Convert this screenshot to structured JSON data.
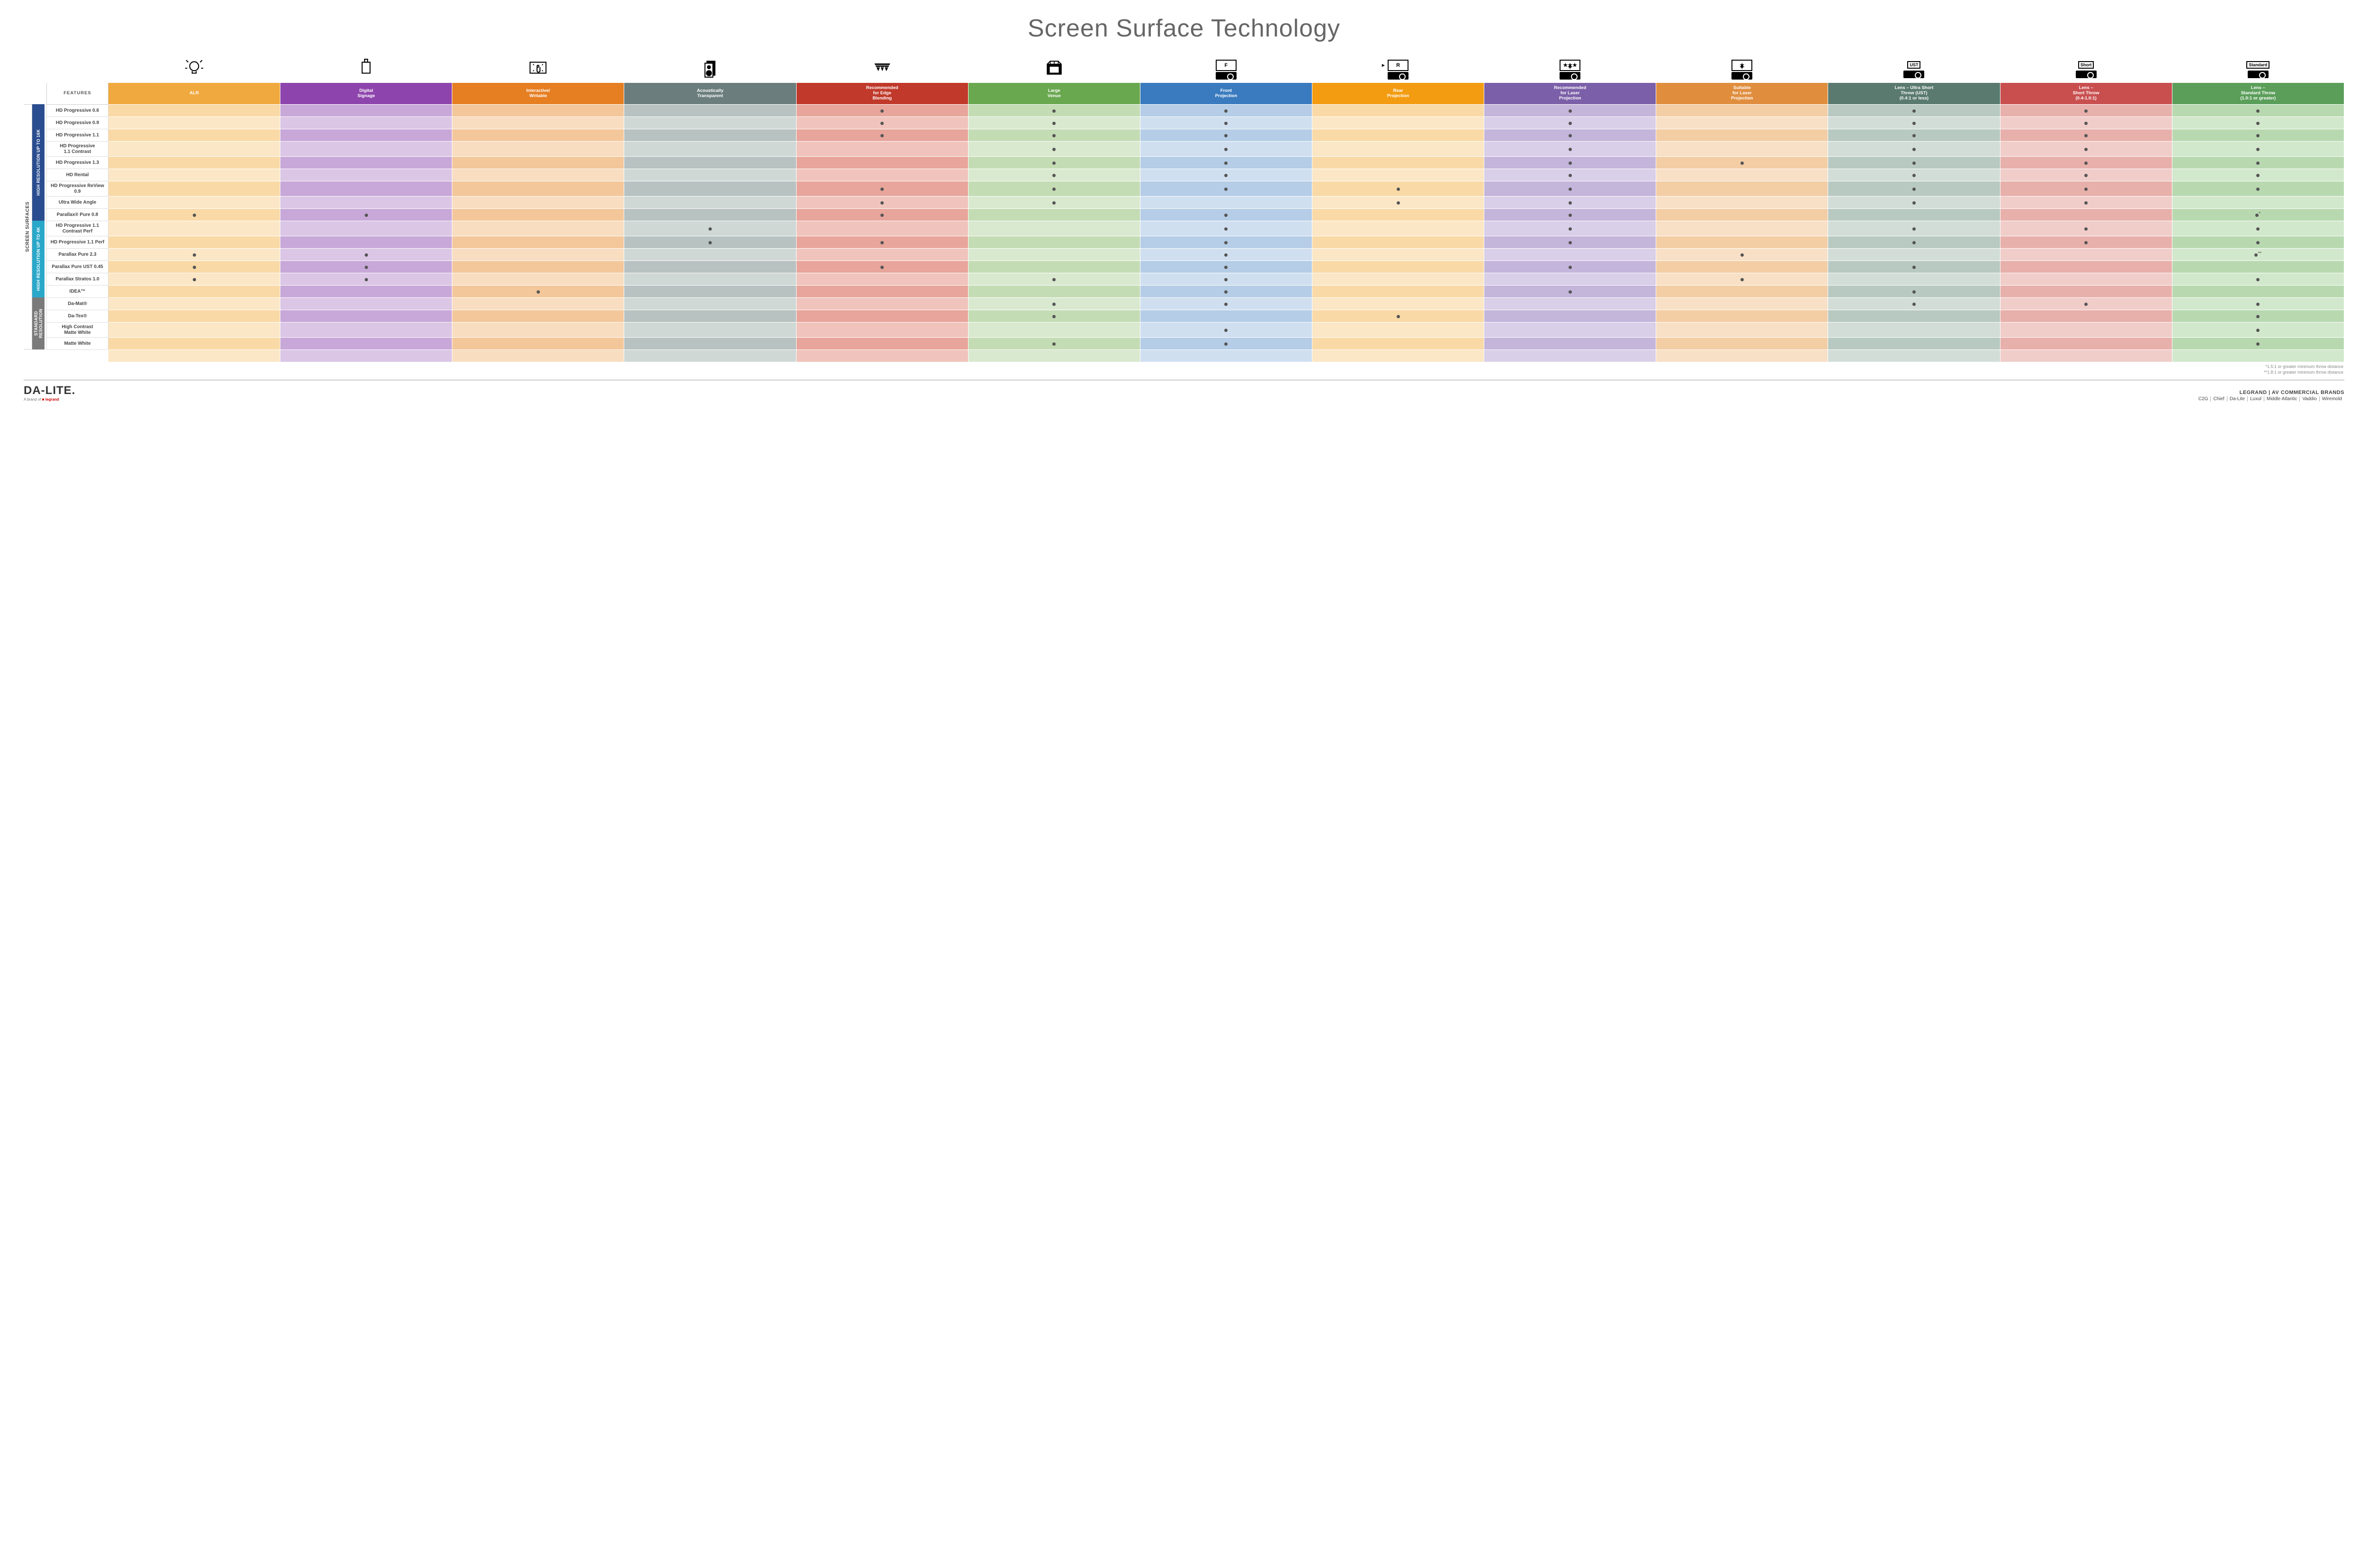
{
  "title": "Screen Surface Technology",
  "colors": {
    "alr": {
      "h": "#f0a93e",
      "a": "#f9d9a6",
      "b": "#fbe7c6"
    },
    "signage": {
      "h": "#8e44ad",
      "a": "#c8a8d8",
      "b": "#dbc6e6"
    },
    "interactive": {
      "h": "#e67e22",
      "a": "#f3c79a",
      "b": "#f8ddc0"
    },
    "acoustic": {
      "h": "#6b7d7d",
      "a": "#b8c2c0",
      "b": "#d0d8d6"
    },
    "edge": {
      "h": "#c0392b",
      "a": "#e8a59b",
      "b": "#f0c4bc"
    },
    "venue": {
      "h": "#6aa84f",
      "a": "#c4dcb4",
      "b": "#d9e9cf"
    },
    "front": {
      "h": "#3a7bbf",
      "a": "#b5cde6",
      "b": "#d0dff0"
    },
    "rear": {
      "h": "#f39c12",
      "a": "#f9d9a6",
      "b": "#fbe7c6"
    },
    "reclaser": {
      "h": "#7b5fa8",
      "a": "#c4b5db",
      "b": "#d9cfe8"
    },
    "suitlaser": {
      "h": "#e08e3e",
      "a": "#f3cda4",
      "b": "#f8e0c6"
    },
    "ust": {
      "h": "#5a7a6f",
      "a": "#b8c9c2",
      "b": "#d2ddd8"
    },
    "short": {
      "h": "#c94f4f",
      "a": "#e8b0ab",
      "b": "#f0cdc9"
    },
    "std": {
      "h": "#5a9e5a",
      "a": "#b8d9b0",
      "b": "#d2e8cc"
    }
  },
  "columns": [
    {
      "key": "alr",
      "label": "ALR",
      "icon": "bulb"
    },
    {
      "key": "signage",
      "label": "Digital\nSignage",
      "icon": "signage"
    },
    {
      "key": "interactive",
      "label": "Interactive/\nWritable",
      "icon": "touch"
    },
    {
      "key": "acoustic",
      "label": "Acoustically\nTransparent",
      "icon": "speaker"
    },
    {
      "key": "edge",
      "label": "Recommended\nfor Edge\nBlending",
      "icon": "blend"
    },
    {
      "key": "venue",
      "label": "Large\nVenue",
      "icon": "venue"
    },
    {
      "key": "front",
      "label": "Front\nProjection",
      "icon": "front"
    },
    {
      "key": "rear",
      "label": "Rear\nProjection",
      "icon": "rear"
    },
    {
      "key": "reclaser",
      "label": "Recommended\nfor Laser\nProjection",
      "icon": "reclaser"
    },
    {
      "key": "suitlaser",
      "label": "Suitable\nfor Laser\nProjection",
      "icon": "suitlaser"
    },
    {
      "key": "ust",
      "label": "Lens – Ultra Short\nThrow (UST)\n(0.4:1 or less)",
      "icon": "ust"
    },
    {
      "key": "short",
      "label": "Lens –\nShort Throw\n(0.4-1.0:1)",
      "icon": "short"
    },
    {
      "key": "std",
      "label": "Lens –\nStandard Throw\n(1.0:1 or greater)",
      "icon": "standard"
    }
  ],
  "side_outer": "SCREEN SURFACES",
  "categories": [
    {
      "label": "HIGH RESOLUTION UP TO 16K",
      "color": "#2a4d8f",
      "rows": 9
    },
    {
      "label": "HIGH RESOLUTION UP TO 4K",
      "color": "#2aa8c9",
      "rows": 6
    },
    {
      "label": "STANDARD\nRESOLUTION",
      "color": "#7a7a7a",
      "rows": 4
    }
  ],
  "rows": [
    {
      "name": "HD Progressive 0.6",
      "dots": [
        "edge",
        "venue",
        "front",
        "reclaser",
        "ust",
        "short",
        "std"
      ]
    },
    {
      "name": "HD Progressive 0.9",
      "dots": [
        "edge",
        "venue",
        "front",
        "reclaser",
        "ust",
        "short",
        "std"
      ]
    },
    {
      "name": "HD Progressive 1.1",
      "dots": [
        "edge",
        "venue",
        "front",
        "reclaser",
        "ust",
        "short",
        "std"
      ]
    },
    {
      "name": "HD Progressive\n1.1 Contrast",
      "dots": [
        "venue",
        "front",
        "reclaser",
        "ust",
        "short",
        "std"
      ]
    },
    {
      "name": "HD Progressive 1.3",
      "dots": [
        "venue",
        "front",
        "reclaser",
        "suitlaser",
        "ust",
        "short",
        "std"
      ]
    },
    {
      "name": "HD Rental",
      "dots": [
        "venue",
        "front",
        "reclaser",
        "ust",
        "short",
        "std"
      ]
    },
    {
      "name": "HD Progressive ReView 0.9",
      "dots": [
        "edge",
        "venue",
        "front",
        "rear",
        "reclaser",
        "ust",
        "short",
        "std"
      ]
    },
    {
      "name": "Ultra Wide Angle",
      "dots": [
        "edge",
        "venue",
        "rear",
        "reclaser",
        "ust",
        "short"
      ]
    },
    {
      "name": "Parallax® Pure 0.8",
      "dots": [
        "alr",
        "signage",
        "edge",
        "front",
        "reclaser"
      ],
      "note": "*",
      "noteCol": "std"
    },
    {
      "name": "HD Progressive 1.1\nContrast Perf",
      "dots": [
        "acoustic",
        "front",
        "reclaser",
        "ust",
        "short",
        "std"
      ]
    },
    {
      "name": "HD Progressive 1.1 Perf",
      "dots": [
        "acoustic",
        "edge",
        "front",
        "reclaser",
        "ust",
        "short",
        "std"
      ]
    },
    {
      "name": "Parallax Pure 2.3",
      "dots": [
        "alr",
        "signage",
        "front",
        "suitlaser"
      ],
      "note": "**",
      "noteCol": "std"
    },
    {
      "name": "Parallax Pure UST 0.45",
      "dots": [
        "alr",
        "signage",
        "edge",
        "front",
        "reclaser",
        "ust"
      ]
    },
    {
      "name": "Parallax Stratos 1.0",
      "dots": [
        "alr",
        "signage",
        "venue",
        "front",
        "suitlaser",
        "std"
      ]
    },
    {
      "name": "IDEA™",
      "dots": [
        "interactive",
        "front",
        "reclaser",
        "ust"
      ]
    },
    {
      "name": "Da-Mat®",
      "dots": [
        "venue",
        "front",
        "ust",
        "short",
        "std"
      ]
    },
    {
      "name": "Da-Tex®",
      "dots": [
        "venue",
        "rear",
        "std"
      ]
    },
    {
      "name": "High Contrast\nMatte White",
      "dots": [
        "front",
        "std"
      ]
    },
    {
      "name": "Matte White",
      "dots": [
        "venue",
        "front",
        "std"
      ]
    }
  ],
  "footnotes": [
    "*1.5:1 or greater minimum throw distance",
    "**1.8:1 or greater minimum throw distance"
  ],
  "footer": {
    "logo": "DA‑LITE.",
    "logo_sub_prefix": "A brand of ",
    "logo_sub_brand": "legrand",
    "brands_title": "LEGRAND | AV COMMERCIAL BRANDS",
    "brands": [
      "C2G",
      "Chief",
      "Da-Lite",
      "Luxul",
      "Middle Atlantic",
      "Vaddio",
      "Wiremold"
    ]
  },
  "features_label": "FEATURES"
}
